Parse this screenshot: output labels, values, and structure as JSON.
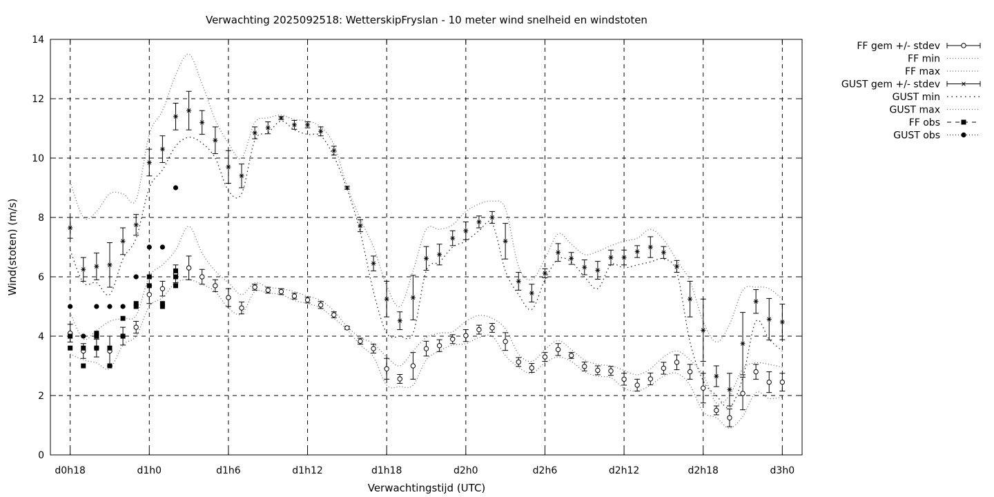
{
  "chart_data": {
    "type": "line",
    "title": "Verwachting 2025092518: WetterskipFryslan - 10 meter wind snelheid en windstoten",
    "xlabel": "Verwachtingstijd (UTC)",
    "ylabel": "Wind(stoten) (m/s)",
    "xlim": [
      -1.5,
      55.5
    ],
    "ylim": [
      0,
      14
    ],
    "yticks": [
      0,
      2,
      4,
      6,
      8,
      10,
      12,
      14
    ],
    "xticks": [
      {
        "x": 0,
        "label": "d0h18"
      },
      {
        "x": 6,
        "label": "d1h0"
      },
      {
        "x": 12,
        "label": "d1h6"
      },
      {
        "x": 18,
        "label": "d1h12"
      },
      {
        "x": 24,
        "label": "d1h18"
      },
      {
        "x": 30,
        "label": "d2h0"
      },
      {
        "x": 36,
        "label": "d2h6"
      },
      {
        "x": 42,
        "label": "d2h12"
      },
      {
        "x": 48,
        "label": "d2h18"
      },
      {
        "x": 54,
        "label": "d3h0"
      }
    ],
    "grid": true,
    "legend_position": "outside-right-top",
    "legend": [
      {
        "label": "FF gem +/- stdev",
        "style": "errorbar-open-circle"
      },
      {
        "label": "FF min",
        "style": "dotted"
      },
      {
        "label": "FF max",
        "style": "dotted"
      },
      {
        "label": "GUST gem +/- stdev",
        "style": "errorbar-star"
      },
      {
        "label": "GUST min",
        "style": "dotted-sparse"
      },
      {
        "label": "GUST max",
        "style": "dotted"
      },
      {
        "label": "FF obs",
        "style": "dashed-square"
      },
      {
        "label": "GUST obs",
        "style": "dotted-circle"
      }
    ],
    "x": [
      0,
      1,
      2,
      3,
      4,
      5,
      6,
      7,
      8,
      9,
      10,
      11,
      12,
      13,
      14,
      15,
      16,
      17,
      18,
      19,
      20,
      21,
      22,
      23,
      24,
      25,
      26,
      27,
      28,
      29,
      30,
      31,
      32,
      33,
      34,
      35,
      36,
      37,
      38,
      39,
      40,
      41,
      42,
      43,
      44,
      45,
      46,
      47,
      48,
      49,
      50,
      51,
      52,
      53,
      54
    ],
    "series": [
      {
        "name": "FF gem +/- stdev",
        "values": [
          4.1,
          3.5,
          3.6,
          3.5,
          4.0,
          4.3,
          5.4,
          5.6,
          6.1,
          6.3,
          6.0,
          5.7,
          5.3,
          4.95,
          5.65,
          5.55,
          5.5,
          5.35,
          5.22,
          5.05,
          4.72,
          4.28,
          3.83,
          3.58,
          2.9,
          2.56,
          3.0,
          3.58,
          3.68,
          3.9,
          4.02,
          4.22,
          4.28,
          3.82,
          3.13,
          2.93,
          3.3,
          3.55,
          3.35,
          2.98,
          2.85,
          2.83,
          2.55,
          2.35,
          2.56,
          2.92,
          3.12,
          2.8,
          2.25,
          1.5,
          1.25,
          2.07,
          2.8,
          2.45,
          2.45
        ],
        "stdev": [
          0.3,
          0.25,
          0.3,
          0.5,
          0.3,
          0.2,
          0.3,
          0.25,
          0.3,
          0.4,
          0.25,
          0.2,
          0.3,
          0.2,
          0.1,
          0.1,
          0.1,
          0.1,
          0.1,
          0.12,
          0.1,
          0.05,
          0.1,
          0.15,
          0.35,
          0.15,
          0.45,
          0.25,
          0.2,
          0.15,
          0.2,
          0.15,
          0.15,
          0.3,
          0.15,
          0.15,
          0.15,
          0.2,
          0.1,
          0.15,
          0.15,
          0.15,
          0.2,
          0.2,
          0.2,
          0.2,
          0.25,
          0.25,
          0.5,
          0.15,
          0.3,
          0.55,
          0.25,
          0.35,
          0.3
        ]
      },
      {
        "name": "FF min",
        "values": [
          3.4,
          3.2,
          3.1,
          2.9,
          3.7,
          4.0,
          5.0,
          5.3,
          5.8,
          5.9,
          5.75,
          5.5,
          4.95,
          4.75,
          5.5,
          5.45,
          5.4,
          5.2,
          5.1,
          4.95,
          4.6,
          4.22,
          3.7,
          3.3,
          2.35,
          2.3,
          2.35,
          3.2,
          3.5,
          3.7,
          3.75,
          3.95,
          4.0,
          3.35,
          2.95,
          2.75,
          3.1,
          3.3,
          3.15,
          2.8,
          2.65,
          2.6,
          2.25,
          2.15,
          2.35,
          2.65,
          2.75,
          2.35,
          1.45,
          1.25,
          0.9,
          1.3,
          2.1,
          1.9,
          1.95
        ]
      },
      {
        "name": "FF max",
        "values": [
          4.8,
          3.9,
          4.2,
          4.5,
          4.6,
          4.7,
          6.0,
          6.4,
          6.9,
          7.7,
          6.8,
          6.2,
          5.8,
          5.4,
          5.8,
          5.65,
          5.6,
          5.5,
          5.35,
          5.2,
          4.85,
          4.32,
          3.95,
          3.75,
          3.3,
          3.0,
          3.5,
          3.95,
          4.1,
          4.15,
          4.5,
          4.7,
          4.6,
          4.25,
          3.4,
          3.15,
          3.55,
          3.85,
          3.55,
          3.2,
          3.05,
          3.0,
          2.85,
          2.7,
          2.9,
          3.3,
          3.5,
          3.2,
          2.7,
          1.75,
          2.0,
          2.9,
          3.1,
          3.05,
          2.95
        ]
      },
      {
        "name": "GUST gem +/- stdev",
        "values": [
          7.65,
          6.25,
          6.35,
          6.4,
          7.2,
          7.75,
          9.85,
          10.3,
          11.4,
          11.6,
          11.2,
          10.6,
          9.7,
          9.4,
          10.85,
          11.02,
          11.35,
          11.12,
          11.12,
          10.9,
          10.25,
          9.0,
          7.72,
          6.45,
          5.25,
          4.52,
          5.3,
          6.62,
          6.75,
          7.3,
          7.55,
          7.85,
          8.0,
          7.2,
          5.85,
          5.45,
          6.12,
          6.82,
          6.62,
          6.32,
          6.22,
          6.65,
          6.65,
          6.85,
          7.0,
          6.82,
          6.35,
          5.25,
          4.2,
          2.65,
          2.2,
          3.75,
          5.17,
          4.57,
          4.48
        ],
        "stdev": [
          0.35,
          0.4,
          0.45,
          0.75,
          0.45,
          0.35,
          0.45,
          0.45,
          0.45,
          0.65,
          0.4,
          0.45,
          0.55,
          0.4,
          0.2,
          0.2,
          0.05,
          0.15,
          0.1,
          0.15,
          0.15,
          0.05,
          0.2,
          0.25,
          0.6,
          0.3,
          0.75,
          0.4,
          0.35,
          0.25,
          0.3,
          0.2,
          0.2,
          0.6,
          0.3,
          0.3,
          0.15,
          0.3,
          0.2,
          0.25,
          0.3,
          0.25,
          0.25,
          0.2,
          0.35,
          0.2,
          0.2,
          0.6,
          1.05,
          0.35,
          0.55,
          1.05,
          0.4,
          0.7,
          0.6
        ]
      },
      {
        "name": "GUST min",
        "values": [
          6.9,
          5.8,
          5.8,
          5.4,
          6.6,
          7.3,
          9.0,
          9.6,
          10.4,
          10.7,
          10.5,
          10.0,
          8.9,
          8.8,
          10.6,
          10.85,
          11.25,
          10.95,
          10.8,
          10.75,
          10.05,
          8.95,
          7.5,
          5.5,
          4.1,
          4.0,
          4.1,
          6.2,
          6.5,
          7.0,
          7.2,
          7.55,
          7.8,
          6.2,
          5.4,
          4.9,
          5.9,
          6.6,
          6.5,
          6.0,
          5.6,
          6.4,
          6.3,
          6.4,
          6.5,
          6.6,
          6.15,
          3.8,
          2.5,
          2.0,
          1.6,
          2.6,
          4.5,
          3.9,
          3.5
        ]
      },
      {
        "name": "GUST max",
        "values": [
          9.2,
          8.0,
          8.2,
          8.8,
          8.8,
          8.6,
          10.8,
          11.6,
          12.8,
          13.5,
          12.5,
          11.3,
          10.5,
          10.0,
          11.2,
          11.35,
          11.45,
          11.3,
          11.25,
          11.05,
          10.45,
          9.05,
          7.95,
          7.0,
          5.7,
          5.0,
          6.2,
          7.6,
          7.6,
          7.75,
          8.2,
          8.45,
          8.55,
          8.3,
          6.35,
          5.9,
          6.6,
          7.45,
          7.1,
          6.75,
          6.85,
          7.05,
          7.2,
          7.3,
          7.6,
          7.25,
          6.55,
          5.85,
          4.5,
          3.8,
          4.4,
          5.55,
          5.65,
          5.6,
          5.25
        ]
      },
      {
        "name": "FF obs",
        "x": [
          0,
          0,
          1,
          1,
          2,
          2,
          2,
          3,
          3,
          4,
          4,
          5,
          5,
          6,
          6,
          7,
          7,
          8,
          8,
          8
        ],
        "values": [
          4.0,
          3.6,
          3.6,
          3.0,
          4.1,
          4.0,
          3.6,
          3.6,
          3.0,
          4.6,
          4.0,
          5.0,
          5.1,
          6.0,
          5.7,
          5.0,
          5.1,
          6.0,
          6.2,
          5.7
        ]
      },
      {
        "name": "GUST obs",
        "x": [
          0,
          1,
          2,
          3,
          4,
          5,
          6,
          7,
          8
        ],
        "values": [
          5.0,
          4.0,
          5.0,
          5.0,
          5.0,
          6.0,
          7.0,
          7.0,
          9.0
        ]
      }
    ]
  }
}
